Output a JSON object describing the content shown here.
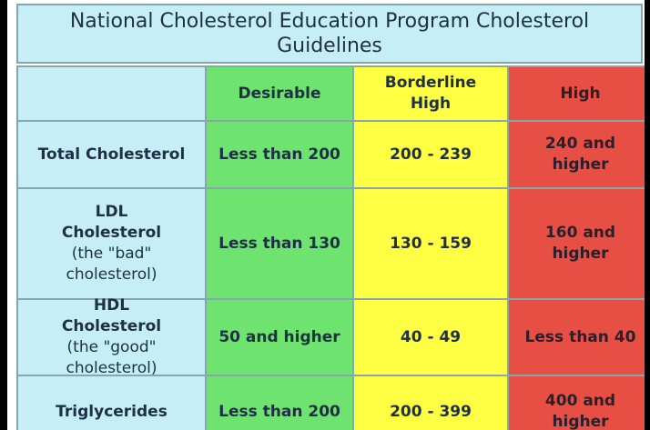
{
  "title": "National Cholesterol Education Program Cholesterol Guidelines",
  "table": {
    "headers": [
      "",
      "Desirable",
      "Borderline High",
      "High"
    ],
    "rows": [
      {
        "label": "Total Cholesterol",
        "sublabel": "",
        "desirable": "Less than 200",
        "borderline": "200 - 239",
        "high": "240 and higher"
      },
      {
        "label": "LDL Cholesterol",
        "sublabel": "(the \"bad\" cholesterol)",
        "desirable": "Less than 130",
        "borderline": "130 - 159",
        "high": "160 and higher"
      },
      {
        "label": "HDL Cholesterol",
        "sublabel": "(the \"good\" cholesterol)",
        "desirable": "50 and higher",
        "borderline": "40 - 49",
        "high": "Less than 40"
      },
      {
        "label": "Triglycerides",
        "sublabel": "",
        "desirable": "Less than 200",
        "borderline": "200 - 399",
        "high": "400 and higher"
      }
    ]
  },
  "colors": {
    "header_blue": "#c6eef7",
    "desirable_green": "#6fe36f",
    "borderline_yellow": "#ffff44",
    "high_red": "#e84f44"
  }
}
